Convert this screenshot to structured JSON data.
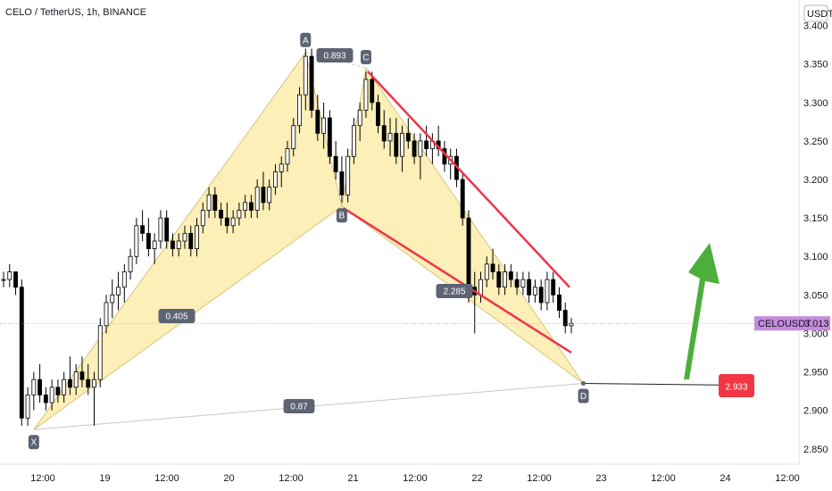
{
  "header": {
    "title": "CELO / TetherUS, 1h, BINANCE"
  },
  "colors": {
    "pattern_fill": "#fcefb8",
    "pattern_stroke": "#d9c37a",
    "channel": "#f0334a",
    "arrow": "#4caf3c",
    "target": "#f23645",
    "price_badge": "#c58bdc",
    "point_badge": "#5c6373",
    "candle_up": "#ffffff",
    "candle_down": "#000000"
  },
  "chart_data": {
    "type": "candlestick",
    "symbol": "CELOUSDT",
    "currency": "USDT",
    "current_price": "3.013",
    "target_price": "2.933",
    "ylim": [
      2.83,
      3.41
    ],
    "y_ticks": [
      "3.400",
      "3.350",
      "3.300",
      "3.250",
      "3.200",
      "3.150",
      "3.100",
      "3.050",
      "3.000",
      "2.950",
      "2.900",
      "2.850"
    ],
    "x_ticks": [
      "12:00",
      "19",
      "12:00",
      "20",
      "12:00",
      "21",
      "12:00",
      "22",
      "12:00",
      "23",
      "12:00",
      "24",
      "12:00"
    ],
    "harmonic_points": [
      {
        "label": "X",
        "price": 2.875
      },
      {
        "label": "A",
        "price": 3.365
      },
      {
        "label": "B",
        "price": 3.165
      },
      {
        "label": "C",
        "price": 3.345
      },
      {
        "label": "D",
        "price": 2.935
      }
    ],
    "ratios": [
      {
        "label": "0.405"
      },
      {
        "label": "0.893"
      },
      {
        "label": "2.285"
      },
      {
        "label": "0.87"
      }
    ],
    "candles": [
      [
        3.07,
        3.08,
        3.06,
        3.07
      ],
      [
        3.07,
        3.09,
        3.06,
        3.08
      ],
      [
        3.08,
        3.08,
        3.05,
        3.06
      ],
      [
        3.06,
        3.07,
        2.88,
        2.89
      ],
      [
        2.89,
        2.93,
        2.88,
        2.92
      ],
      [
        2.92,
        2.95,
        2.9,
        2.94
      ],
      [
        2.94,
        2.96,
        2.91,
        2.92
      ],
      [
        2.92,
        2.93,
        2.9,
        2.91
      ],
      [
        2.91,
        2.94,
        2.9,
        2.93
      ],
      [
        2.93,
        2.94,
        2.91,
        2.92
      ],
      [
        2.92,
        2.95,
        2.91,
        2.94
      ],
      [
        2.94,
        2.97,
        2.92,
        2.93
      ],
      [
        2.93,
        2.96,
        2.92,
        2.95
      ],
      [
        2.95,
        2.97,
        2.93,
        2.94
      ],
      [
        2.94,
        2.96,
        2.92,
        2.93
      ],
      [
        2.93,
        2.95,
        2.88,
        2.94
      ],
      [
        2.94,
        3.02,
        2.93,
        3.01
      ],
      [
        3.01,
        3.05,
        3.0,
        3.04
      ],
      [
        3.04,
        3.07,
        3.02,
        3.05
      ],
      [
        3.05,
        3.08,
        3.03,
        3.06
      ],
      [
        3.06,
        3.09,
        3.04,
        3.08
      ],
      [
        3.08,
        3.11,
        3.07,
        3.1
      ],
      [
        3.1,
        3.15,
        3.09,
        3.14
      ],
      [
        3.14,
        3.16,
        3.12,
        3.13
      ],
      [
        3.13,
        3.15,
        3.1,
        3.11
      ],
      [
        3.11,
        3.13,
        3.09,
        3.12
      ],
      [
        3.12,
        3.16,
        3.11,
        3.15
      ],
      [
        3.15,
        3.16,
        3.11,
        3.12
      ],
      [
        3.12,
        3.13,
        3.1,
        3.11
      ],
      [
        3.11,
        3.13,
        3.1,
        3.12
      ],
      [
        3.12,
        3.14,
        3.11,
        3.13
      ],
      [
        3.13,
        3.14,
        3.1,
        3.11
      ],
      [
        3.11,
        3.15,
        3.1,
        3.14
      ],
      [
        3.14,
        3.17,
        3.13,
        3.16
      ],
      [
        3.16,
        3.19,
        3.15,
        3.18
      ],
      [
        3.18,
        3.19,
        3.15,
        3.16
      ],
      [
        3.16,
        3.17,
        3.14,
        3.15
      ],
      [
        3.15,
        3.17,
        3.13,
        3.14
      ],
      [
        3.14,
        3.16,
        3.13,
        3.15
      ],
      [
        3.15,
        3.17,
        3.14,
        3.16
      ],
      [
        3.16,
        3.18,
        3.15,
        3.17
      ],
      [
        3.17,
        3.18,
        3.15,
        3.16
      ],
      [
        3.16,
        3.2,
        3.15,
        3.19
      ],
      [
        3.19,
        3.21,
        3.16,
        3.17
      ],
      [
        3.17,
        3.2,
        3.16,
        3.19
      ],
      [
        3.19,
        3.22,
        3.18,
        3.21
      ],
      [
        3.21,
        3.23,
        3.19,
        3.22
      ],
      [
        3.22,
        3.25,
        3.21,
        3.24
      ],
      [
        3.24,
        3.28,
        3.23,
        3.27
      ],
      [
        3.27,
        3.32,
        3.26,
        3.31
      ],
      [
        3.31,
        3.37,
        3.29,
        3.36
      ],
      [
        3.36,
        3.37,
        3.28,
        3.29
      ],
      [
        3.29,
        3.31,
        3.25,
        3.26
      ],
      [
        3.26,
        3.3,
        3.24,
        3.28
      ],
      [
        3.28,
        3.29,
        3.22,
        3.23
      ],
      [
        3.23,
        3.25,
        3.2,
        3.21
      ],
      [
        3.21,
        3.23,
        3.17,
        3.18
      ],
      [
        3.18,
        3.24,
        3.17,
        3.23
      ],
      [
        3.23,
        3.28,
        3.22,
        3.27
      ],
      [
        3.27,
        3.3,
        3.25,
        3.29
      ],
      [
        3.29,
        3.34,
        3.28,
        3.33
      ],
      [
        3.33,
        3.34,
        3.29,
        3.3
      ],
      [
        3.3,
        3.31,
        3.26,
        3.27
      ],
      [
        3.27,
        3.29,
        3.24,
        3.25
      ],
      [
        3.25,
        3.28,
        3.23,
        3.26
      ],
      [
        3.26,
        3.28,
        3.22,
        3.23
      ],
      [
        3.23,
        3.27,
        3.21,
        3.26
      ],
      [
        3.26,
        3.28,
        3.24,
        3.25
      ],
      [
        3.25,
        3.26,
        3.22,
        3.23
      ],
      [
        3.23,
        3.26,
        3.2,
        3.25
      ],
      [
        3.25,
        3.27,
        3.23,
        3.24
      ],
      [
        3.24,
        3.26,
        3.22,
        3.25
      ],
      [
        3.25,
        3.27,
        3.23,
        3.24
      ],
      [
        3.24,
        3.25,
        3.21,
        3.22
      ],
      [
        3.22,
        3.24,
        3.2,
        3.23
      ],
      [
        3.23,
        3.24,
        3.19,
        3.2
      ],
      [
        3.2,
        3.21,
        3.14,
        3.15
      ],
      [
        3.15,
        3.16,
        3.04,
        3.06
      ],
      [
        3.06,
        3.08,
        3.0,
        3.05
      ],
      [
        3.05,
        3.08,
        3.04,
        3.07
      ],
      [
        3.07,
        3.1,
        3.06,
        3.09
      ],
      [
        3.09,
        3.11,
        3.07,
        3.08
      ],
      [
        3.08,
        3.09,
        3.05,
        3.06
      ],
      [
        3.06,
        3.09,
        3.05,
        3.08
      ],
      [
        3.08,
        3.09,
        3.06,
        3.07
      ],
      [
        3.07,
        3.08,
        3.05,
        3.06
      ],
      [
        3.06,
        3.08,
        3.05,
        3.07
      ],
      [
        3.07,
        3.08,
        3.04,
        3.05
      ],
      [
        3.05,
        3.07,
        3.04,
        3.06
      ],
      [
        3.06,
        3.07,
        3.03,
        3.04
      ],
      [
        3.04,
        3.08,
        3.03,
        3.07
      ],
      [
        3.07,
        3.08,
        3.04,
        3.05
      ],
      [
        3.05,
        3.06,
        3.02,
        3.03
      ],
      [
        3.03,
        3.04,
        3.0,
        3.01
      ],
      [
        3.01,
        3.02,
        3.0,
        3.013
      ]
    ]
  }
}
